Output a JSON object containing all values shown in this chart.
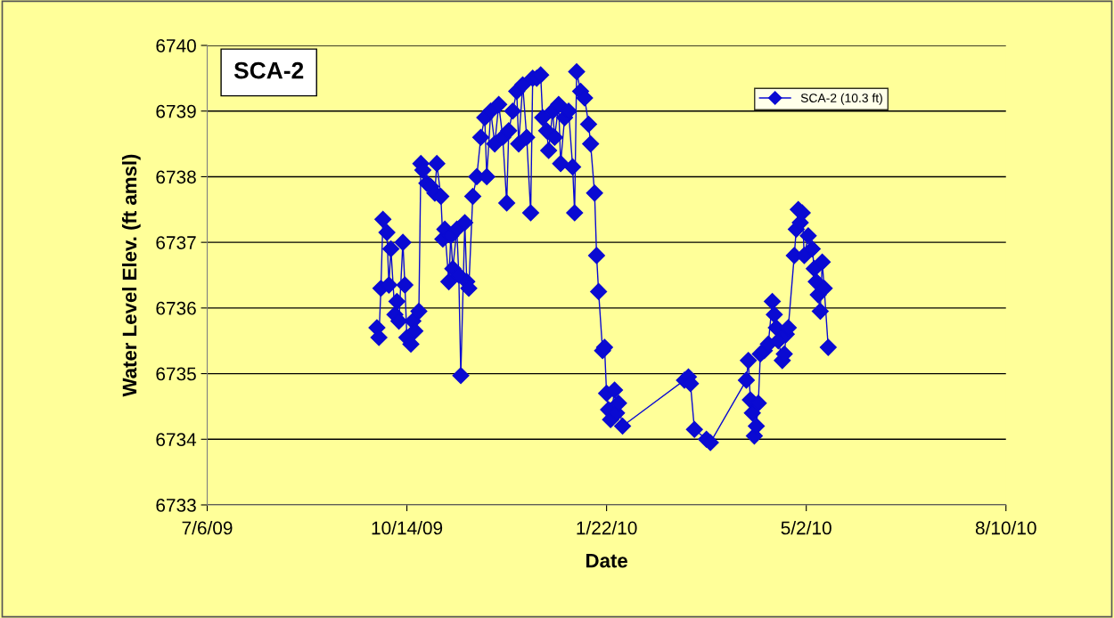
{
  "chart_data": {
    "type": "line",
    "title": "SCA-2",
    "xlabel": "Date",
    "ylabel": "Water Level Elev. (ft amsl)",
    "x": [
      "2009-09-29",
      "2009-09-30",
      "2009-10-01",
      "2009-10-02",
      "2009-10-04",
      "2009-10-05",
      "2009-10-06",
      "2009-10-08",
      "2009-10-09",
      "2009-10-10",
      "2009-10-12",
      "2009-10-13",
      "2009-10-14",
      "2009-10-16",
      "2009-10-17",
      "2009-10-18",
      "2009-10-20",
      "2009-10-21",
      "2009-10-22",
      "2009-10-24",
      "2009-10-26",
      "2009-10-28",
      "2009-10-29",
      "2009-10-31",
      "2009-11-01",
      "2009-11-02",
      "2009-11-04",
      "2009-11-05",
      "2009-11-06",
      "2009-11-08",
      "2009-11-09",
      "2009-11-10",
      "2009-11-12",
      "2009-11-13",
      "2009-11-14",
      "2009-11-16",
      "2009-11-18",
      "2009-11-20",
      "2009-11-22",
      "2009-11-23",
      "2009-11-25",
      "2009-11-27",
      "2009-11-29",
      "2009-12-01",
      "2009-12-03",
      "2009-12-04",
      "2009-12-06",
      "2009-12-08",
      "2009-12-09",
      "2009-12-11",
      "2009-12-13",
      "2009-12-15",
      "2009-12-16",
      "2009-12-18",
      "2009-12-20",
      "2009-12-21",
      "2009-12-23",
      "2009-12-24",
      "2009-12-26",
      "2009-12-27",
      "2009-12-29",
      "2009-12-30",
      "2010-01-01",
      "2010-01-03",
      "2010-01-05",
      "2010-01-06",
      "2010-01-07",
      "2010-01-09",
      "2010-01-11",
      "2010-01-13",
      "2010-01-14",
      "2010-01-16",
      "2010-01-17",
      "2010-01-18",
      "2010-01-20",
      "2010-01-21",
      "2010-01-22",
      "2010-01-23",
      "2010-01-24",
      "2010-01-26",
      "2010-01-27",
      "2010-01-28",
      "2010-01-30",
      "2010-03-02",
      "2010-03-04",
      "2010-03-05",
      "2010-03-07",
      "2010-03-13",
      "2010-03-15",
      "2010-04-02",
      "2010-04-03",
      "2010-04-04",
      "2010-04-05",
      "2010-04-06",
      "2010-04-07",
      "2010-04-08",
      "2010-04-09",
      "2010-04-11",
      "2010-04-13",
      "2010-04-15",
      "2010-04-16",
      "2010-04-17",
      "2010-04-18",
      "2010-04-20",
      "2010-04-21",
      "2010-04-22",
      "2010-04-23",
      "2010-04-26",
      "2010-04-27",
      "2010-04-28",
      "2010-04-29",
      "2010-04-30",
      "2010-05-01",
      "2010-05-03",
      "2010-05-05",
      "2010-05-06",
      "2010-05-07",
      "2010-05-08",
      "2010-05-09",
      "2010-05-10",
      "2010-05-11",
      "2010-05-13"
    ],
    "series": [
      {
        "name": "SCA-2 (10.3 ft)",
        "color": "#0a0ad2",
        "values": [
          6735.7,
          6735.55,
          6736.3,
          6737.35,
          6737.15,
          6736.35,
          6736.9,
          6735.9,
          6736.1,
          6735.8,
          6737.0,
          6736.35,
          6735.55,
          6735.45,
          6735.8,
          6735.65,
          6735.95,
          6738.2,
          6738.1,
          6737.9,
          6737.85,
          6737.75,
          6738.2,
          6737.7,
          6737.05,
          6737.2,
          6736.4,
          6737.1,
          6736.6,
          6737.2,
          6736.5,
          6734.97,
          6737.3,
          6736.4,
          6736.3,
          6737.7,
          6738.0,
          6738.6,
          6738.9,
          6738.0,
          6739.0,
          6738.5,
          6739.1,
          6738.6,
          6737.6,
          6738.7,
          6739.0,
          6739.3,
          6738.5,
          6739.4,
          6738.6,
          6737.45,
          6739.5,
          6739.5,
          6739.55,
          6738.9,
          6738.7,
          6738.4,
          6739.0,
          6738.6,
          6739.1,
          6738.2,
          6738.9,
          6739.0,
          6738.15,
          6737.45,
          6739.6,
          6739.3,
          6739.2,
          6738.8,
          6738.5,
          6737.75,
          6736.8,
          6736.25,
          6735.35,
          6735.4,
          6734.7,
          6734.45,
          6734.3,
          6734.75,
          6734.4,
          6734.55,
          6734.2,
          6734.9,
          6734.95,
          6734.85,
          6734.15,
          6734.0,
          6733.95,
          6734.9,
          6735.2,
          6734.6,
          6734.4,
          6734.05,
          6734.2,
          6734.55,
          6735.3,
          6735.35,
          6735.45,
          6736.1,
          6735.9,
          6735.7,
          6735.5,
          6735.2,
          6735.3,
          6735.6,
          6735.7,
          6736.8,
          6737.2,
          6737.5,
          6737.3,
          6737.45,
          6736.8,
          6737.1,
          6736.9,
          6736.6,
          6736.4,
          6736.2,
          6735.95,
          6736.7,
          6736.3,
          6735.4
        ]
      }
    ],
    "xlim": [
      "2009-07-06",
      "2010-08-10"
    ],
    "xticks": [
      {
        "value": "2009-07-06",
        "label": "7/6/09"
      },
      {
        "value": "2009-10-14",
        "label": "10/14/09"
      },
      {
        "value": "2010-01-22",
        "label": "1/22/10"
      },
      {
        "value": "2010-05-02",
        "label": "5/2/10"
      },
      {
        "value": "2010-08-10",
        "label": "8/10/10"
      }
    ],
    "ylim": [
      6733,
      6740
    ],
    "yticks": [
      6733,
      6734,
      6735,
      6736,
      6737,
      6738,
      6739,
      6740
    ],
    "grid": "y",
    "legend": "top right",
    "marker": "diamond",
    "line_style": "solid"
  }
}
